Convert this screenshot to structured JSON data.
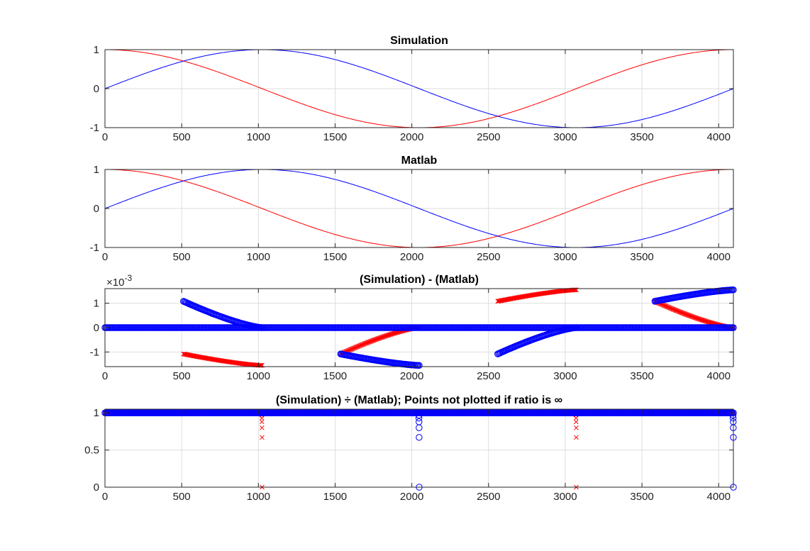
{
  "colors": {
    "series_a": "#ff0000",
    "series_b": "#0000ff",
    "grid": "#dedede",
    "axes": "#262626"
  },
  "chart_data": [
    {
      "type": "line",
      "title": "Simulation",
      "xlim": [
        0,
        4096
      ],
      "ylim": [
        -1,
        1
      ],
      "grid": true,
      "x_ticks": [
        0,
        500,
        1000,
        1500,
        2000,
        2500,
        3000,
        3500,
        4000
      ],
      "y_ticks": [
        -1,
        0,
        1
      ],
      "series": [
        {
          "color": "#ff0000",
          "marker": "none",
          "x_range": [
            0,
            4096
          ],
          "function": "cos(2*pi*n/4096)"
        },
        {
          "color": "#0000ff",
          "marker": "none",
          "x_range": [
            0,
            4096
          ],
          "function": "sin(2*pi*n/4096)"
        }
      ]
    },
    {
      "type": "line",
      "title": "Matlab",
      "xlim": [
        0,
        4096
      ],
      "ylim": [
        -1,
        1
      ],
      "grid": true,
      "x_ticks": [
        0,
        500,
        1000,
        1500,
        2000,
        2500,
        3000,
        3500,
        4000
      ],
      "y_ticks": [
        -1,
        0,
        1
      ],
      "series": [
        {
          "color": "#ff0000",
          "marker": "none",
          "x_range": [
            0,
            4096
          ],
          "function": "cos(2*pi*n/4096)"
        },
        {
          "color": "#0000ff",
          "marker": "none",
          "x_range": [
            0,
            4096
          ],
          "function": "sin(2*pi*n/4096)"
        }
      ]
    },
    {
      "type": "scatter",
      "title": "(Simulation) - (Matlab)",
      "exponent_label": "×10",
      "exponent_power": "-3",
      "xlim": [
        0,
        4096
      ],
      "ylim": [
        -0.0016,
        0.0016
      ],
      "grid": true,
      "x_ticks": [
        0,
        500,
        1000,
        1500,
        2000,
        2500,
        3000,
        3500,
        4000
      ],
      "y_ticks": [
        -1,
        0,
        1
      ],
      "y_tick_scale": 0.001,
      "series": [
        {
          "color": "#ff0000",
          "marker": "x",
          "segments": [
            {
              "x": [
                512,
                1024
              ],
              "y": [
                -0.00108,
                -0.00155
              ]
            },
            {
              "x": [
                1536,
                2048
              ],
              "y": [
                -0.00108,
                0.0
              ]
            },
            {
              "x": [
                2560,
                3072
              ],
              "y": [
                0.00108,
                0.00155
              ]
            },
            {
              "x": [
                3584,
                4096
              ],
              "y": [
                0.00108,
                0.0
              ]
            }
          ]
        },
        {
          "color": "#0000ff",
          "marker": "o",
          "segments": [
            {
              "x": [
                0,
                4096
              ],
              "y": [
                0.0,
                0.0
              ]
            },
            {
              "x": [
                512,
                1024
              ],
              "y": [
                0.00108,
                0.0
              ]
            },
            {
              "x": [
                1536,
                2048
              ],
              "y": [
                -0.00108,
                -0.00155
              ]
            },
            {
              "x": [
                2560,
                3072
              ],
              "y": [
                -0.00108,
                0.0
              ]
            },
            {
              "x": [
                3584,
                4096
              ],
              "y": [
                0.00108,
                0.00155
              ]
            }
          ]
        }
      ]
    },
    {
      "type": "scatter",
      "title": "(Simulation) ÷ (Matlab); Points not plotted if ratio is ∞",
      "xlim": [
        0,
        4096
      ],
      "ylim": [
        0,
        1.05
      ],
      "grid": true,
      "x_ticks": [
        0,
        500,
        1000,
        1500,
        2000,
        2500,
        3000,
        3500,
        4000
      ],
      "y_ticks": [
        0,
        0.5,
        1
      ],
      "series": [
        {
          "color": "#ff0000",
          "marker": "x",
          "baseline": {
            "x": [
              0,
              4096
            ],
            "y": 1.0
          },
          "dips": [
            {
              "x": 1024,
              "y": [
                0.97,
                0.93,
                0.88,
                0.8,
                0.67,
                0.0
              ]
            },
            {
              "x": 3072,
              "y": [
                0.97,
                0.93,
                0.88,
                0.8,
                0.67,
                0.0
              ]
            }
          ]
        },
        {
          "color": "#0000ff",
          "marker": "o",
          "baseline": {
            "x": [
              0,
              4096
            ],
            "y": 1.0
          },
          "dips": [
            {
              "x": 2048,
              "y": [
                0.97,
                0.93,
                0.88,
                0.8,
                0.67,
                0.0
              ]
            },
            {
              "x": 4096,
              "y": [
                0.97,
                0.93,
                0.88,
                0.8,
                0.67,
                0.0
              ]
            }
          ]
        }
      ]
    }
  ]
}
